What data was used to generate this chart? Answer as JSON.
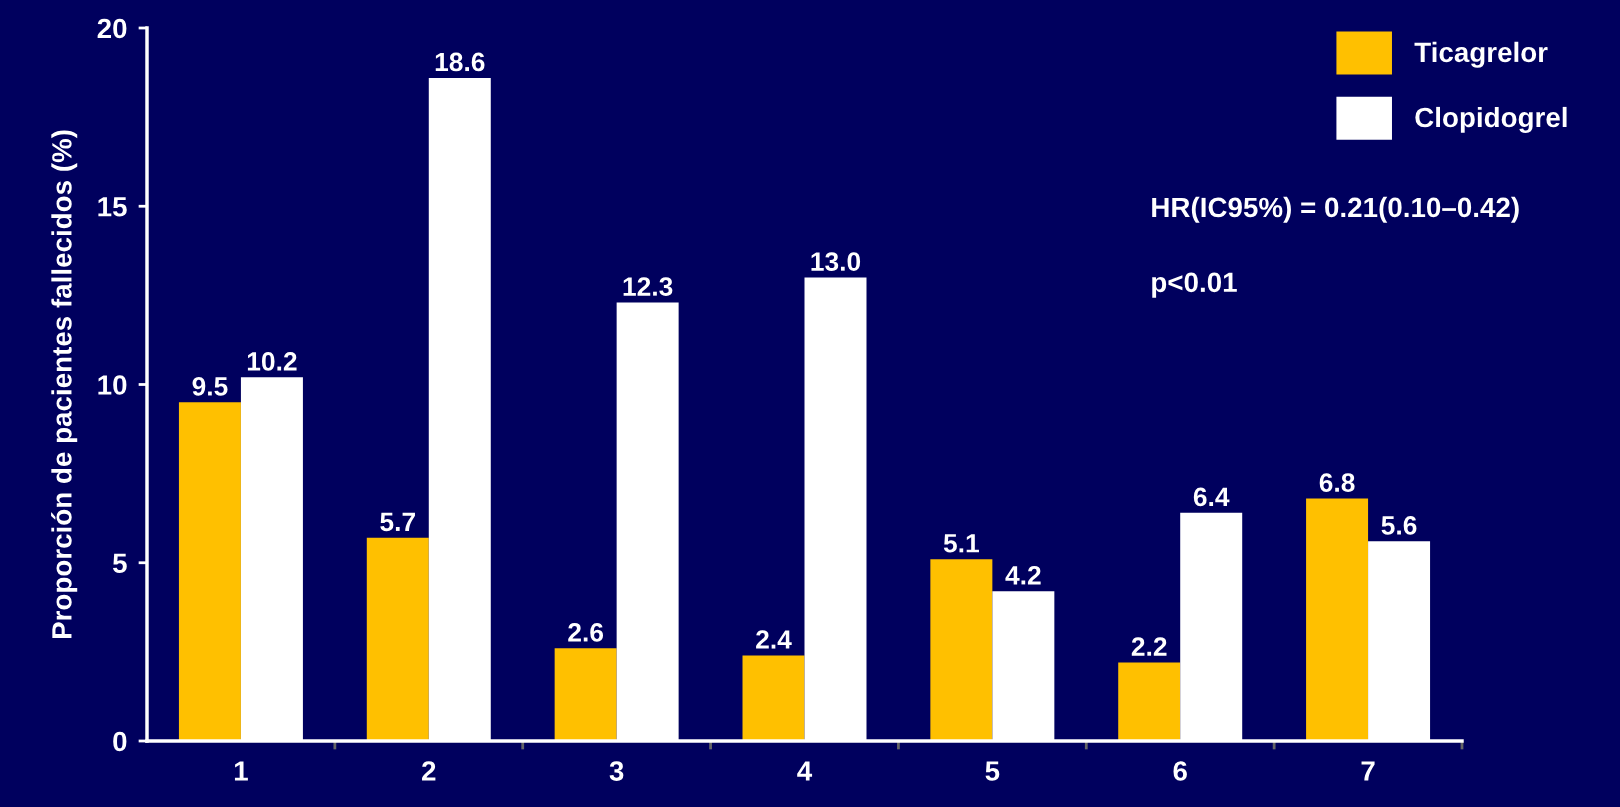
{
  "chart_data": {
    "type": "bar",
    "ylabel": "Proporción de pacientes fallecidos (%)",
    "categories": [
      "1",
      "2",
      "3",
      "4",
      "5",
      "6",
      "7"
    ],
    "series": [
      {
        "name": "Ticagrelor",
        "color": "#ffc000",
        "values": [
          9.5,
          5.7,
          2.6,
          2.4,
          5.1,
          2.2,
          6.8
        ]
      },
      {
        "name": "Clopidogrel",
        "color": "#ffffff",
        "values": [
          10.2,
          18.6,
          12.3,
          13.0,
          4.2,
          6.4,
          5.6
        ]
      }
    ],
    "value_labels": [
      [
        "9.5",
        "5.7",
        "2.6",
        "2.4",
        "5.1",
        "2.2",
        "6.8"
      ],
      [
        "10.2",
        "18.6",
        "12.3",
        "13.0",
        "4.2",
        "6.4",
        "5.6"
      ]
    ],
    "ylim": [
      0,
      20
    ],
    "yticks": [
      0,
      5,
      10,
      15,
      20
    ],
    "grid": false,
    "legend": "top right",
    "annotations": [
      "HR(IC95%) = 0.21(0.10–0.42)",
      "p<0.01"
    ]
  }
}
